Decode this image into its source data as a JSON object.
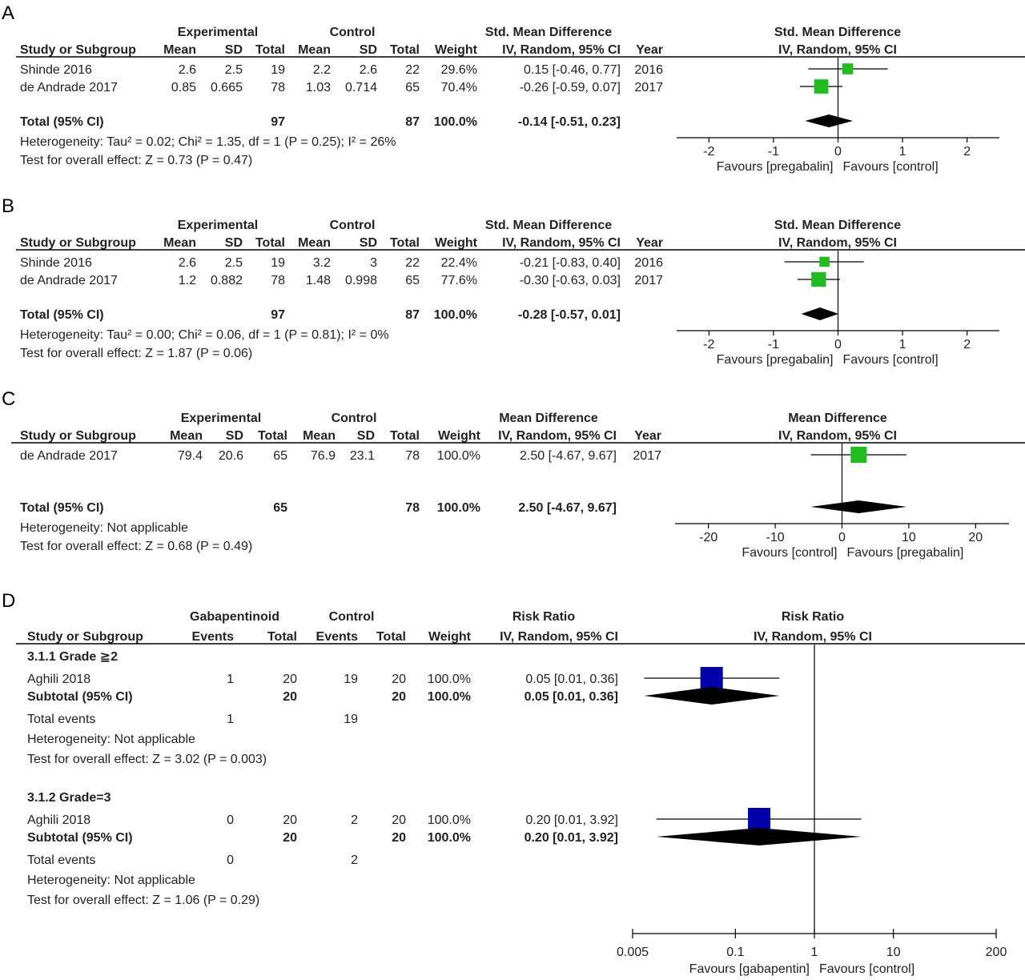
{
  "panels": [
    {
      "letter": "A",
      "group_headers": [
        "Experimental",
        "Control"
      ],
      "col_headers": [
        "Study or Subgroup",
        "Mean",
        "SD",
        "Total",
        "Mean",
        "SD",
        "Total",
        "Weight",
        "IV, Random, 95% CI",
        "Year"
      ],
      "effect_header": [
        "Std. Mean Difference",
        "IV, Random, 95% CI"
      ],
      "plot_header": [
        "Std. Mean Difference",
        "IV, Random, 95% CI"
      ],
      "rows": [
        {
          "study": "Shinde 2016",
          "cells": [
            "2.6",
            "2.5",
            "19",
            "2.2",
            "2.6",
            "22",
            "29.6%"
          ],
          "ci": "0.15 [-0.46, 0.77]",
          "year": "2016",
          "est": 0.15,
          "lo": -0.46,
          "hi": 0.77,
          "weight": 29.6
        },
        {
          "study": "de Andrade 2017",
          "cells": [
            "0.85",
            "0.665",
            "78",
            "1.03",
            "0.714",
            "65",
            "70.4%"
          ],
          "ci": "-0.26 [-0.59, 0.07]",
          "year": "2017",
          "est": -0.26,
          "lo": -0.59,
          "hi": 0.07,
          "weight": 70.4
        }
      ],
      "total": {
        "label": "Total (95% CI)",
        "exp_total": "97",
        "ctrl_total": "87",
        "weight": "100.0%",
        "ci": "-0.14 [-0.51, 0.23]",
        "est": -0.14,
        "lo": -0.51,
        "hi": 0.23
      },
      "notes": [
        "Heterogeneity: Tau² = 0.02; Chi² = 1.35, df = 1 (P = 0.25); I² = 26%",
        "Test for overall effect: Z = 0.73 (P = 0.47)"
      ],
      "axis": {
        "scale": "linear",
        "min": -2.5,
        "max": 2.5,
        "ref": 0,
        "ticks": [
          -2,
          -1,
          0,
          1,
          2
        ],
        "tick_labels": [
          "-2",
          "-1",
          "0",
          "1",
          "2"
        ],
        "favours_left": "Favours [pregabalin]",
        "favours_right": "Favours [control]"
      },
      "colors": {
        "square": "#22bb22"
      }
    },
    {
      "letter": "B",
      "group_headers": [
        "Experimental",
        "Control"
      ],
      "col_headers": [
        "Study or Subgroup",
        "Mean",
        "SD",
        "Total",
        "Mean",
        "SD",
        "Total",
        "Weight",
        "IV, Random, 95% CI",
        "Year"
      ],
      "effect_header": [
        "Std. Mean Difference",
        "IV, Random, 95% CI"
      ],
      "plot_header": [
        "Std. Mean Difference",
        "IV, Random, 95% CI"
      ],
      "rows": [
        {
          "study": "Shinde 2016",
          "cells": [
            "2.6",
            "2.5",
            "19",
            "3.2",
            "3",
            "22",
            "22.4%"
          ],
          "ci": "-0.21 [-0.83, 0.40]",
          "year": "2016",
          "est": -0.21,
          "lo": -0.83,
          "hi": 0.4,
          "weight": 22.4
        },
        {
          "study": "de Andrade 2017",
          "cells": [
            "1.2",
            "0.882",
            "78",
            "1.48",
            "0.998",
            "65",
            "77.6%"
          ],
          "ci": "-0.30 [-0.63, 0.03]",
          "year": "2017",
          "est": -0.3,
          "lo": -0.63,
          "hi": 0.03,
          "weight": 77.6
        }
      ],
      "total": {
        "label": "Total (95% CI)",
        "exp_total": "97",
        "ctrl_total": "87",
        "weight": "100.0%",
        "ci": "-0.28 [-0.57, 0.01]",
        "est": -0.28,
        "lo": -0.57,
        "hi": 0.01
      },
      "notes": [
        "Heterogeneity: Tau² = 0.00; Chi² = 0.06, df = 1 (P = 0.81); I² = 0%",
        "Test for overall effect: Z = 1.87 (P = 0.06)"
      ],
      "axis": {
        "scale": "linear",
        "min": -2.5,
        "max": 2.5,
        "ref": 0,
        "ticks": [
          -2,
          -1,
          0,
          1,
          2
        ],
        "tick_labels": [
          "-2",
          "-1",
          "0",
          "1",
          "2"
        ],
        "favours_left": "Favours [pregabalin]",
        "favours_right": "Favours [control]"
      },
      "colors": {
        "square": "#22bb22"
      }
    },
    {
      "letter": "C",
      "group_headers": [
        "Experimental",
        "Control"
      ],
      "col_headers": [
        "Study or Subgroup",
        "Mean",
        "SD",
        "Total",
        "Mean",
        "SD",
        "Total",
        "Weight",
        "IV, Random, 95% CI",
        "Year"
      ],
      "effect_header": [
        "Mean Difference",
        "IV, Random, 95% CI"
      ],
      "plot_header": [
        "Mean Difference",
        "IV, Random, 95% CI"
      ],
      "rows": [
        {
          "study": "de Andrade 2017",
          "cells": [
            "79.4",
            "20.6",
            "65",
            "76.9",
            "23.1",
            "78",
            "100.0%"
          ],
          "ci": "2.50 [-4.67, 9.67]",
          "year": "2017",
          "est": 2.5,
          "lo": -4.67,
          "hi": 9.67,
          "weight": 100.0
        }
      ],
      "total": {
        "label": "Total (95% CI)",
        "exp_total": "65",
        "ctrl_total": "78",
        "weight": "100.0%",
        "ci": "2.50 [-4.67, 9.67]",
        "est": 2.5,
        "lo": -4.67,
        "hi": 9.67
      },
      "notes": [
        "Heterogeneity: Not applicable",
        "Test for overall effect: Z = 0.68 (P = 0.49)"
      ],
      "axis": {
        "scale": "linear",
        "min": -25,
        "max": 25,
        "ref": 0,
        "ticks": [
          -20,
          -10,
          0,
          10,
          20
        ],
        "tick_labels": [
          "-20",
          "-10",
          "0",
          "10",
          "20"
        ],
        "favours_left": "Favours [control]",
        "favours_right": "Favours [pregabalin]"
      },
      "colors": {
        "square": "#22bb22"
      }
    }
  ],
  "panel_d": {
    "letter": "D",
    "group_headers": [
      "Gabapentinoid",
      "Control"
    ],
    "col_headers": [
      "Study or Subgroup",
      "Events",
      "Total",
      "Events",
      "Total",
      "Weight",
      "IV, Random, 95% CI"
    ],
    "effect_header": [
      "Risk Ratio",
      "IV, Random, 95% CI"
    ],
    "plot_header": [
      "Risk Ratio",
      "IV, Random, 95% CI"
    ],
    "subgroups": [
      {
        "title": "3.1.1 Grade ≧2",
        "study": {
          "name": "Aghili 2018",
          "events_exp": "1",
          "total_exp": "20",
          "events_ctrl": "19",
          "total_ctrl": "20",
          "weight": "100.0%",
          "ci": "0.05 [0.01, 0.36]",
          "est": 0.05,
          "lo": 0.007,
          "hi": 0.36
        },
        "subtotal": {
          "label": "Subtotal (95% CI)",
          "total_exp": "20",
          "total_ctrl": "20",
          "weight": "100.0%",
          "ci": "0.05 [0.01, 0.36]",
          "est": 0.05,
          "lo": 0.007,
          "hi": 0.36
        },
        "total_events": {
          "label": "Total events",
          "exp": "1",
          "ctrl": "19"
        },
        "notes": [
          "Heterogeneity: Not applicable",
          "Test for overall effect: Z = 3.02 (P = 0.003)"
        ]
      },
      {
        "title": "3.1.2 Grade=3",
        "study": {
          "name": "Aghili 2018",
          "events_exp": "0",
          "total_exp": "20",
          "events_ctrl": "2",
          "total_ctrl": "20",
          "weight": "100.0%",
          "ci": "0.20 [0.01, 3.92]",
          "est": 0.2,
          "lo": 0.01,
          "hi": 3.92
        },
        "subtotal": {
          "label": "Subtotal (95% CI)",
          "total_exp": "20",
          "total_ctrl": "20",
          "weight": "100.0%",
          "ci": "0.20 [0.01, 3.92]",
          "est": 0.2,
          "lo": 0.01,
          "hi": 3.92
        },
        "total_events": {
          "label": "Total events",
          "exp": "0",
          "ctrl": "2"
        },
        "notes": [
          "Heterogeneity: Not applicable",
          "Test for overall effect: Z = 1.06 (P = 0.29)"
        ]
      }
    ],
    "axis": {
      "scale": "log",
      "min": 0.005,
      "max": 200,
      "ref": 1,
      "ticks": [
        0.005,
        0.1,
        1,
        10,
        200
      ],
      "tick_labels": [
        "0.005",
        "0.1",
        "1",
        "10",
        "200"
      ],
      "favours_left": "Favours [gabapentin]",
      "favours_right": "Favours [control]"
    },
    "colors": {
      "square": "#0000aa"
    }
  },
  "chart_data": [
    {
      "type": "forest",
      "panel": "A",
      "measure": "Std. Mean Difference (IV, Random, 95% CI)",
      "studies": [
        {
          "name": "Shinde 2016",
          "est": 0.15,
          "lo": -0.46,
          "hi": 0.77,
          "weight": 29.6
        },
        {
          "name": "de Andrade 2017",
          "est": -0.26,
          "lo": -0.59,
          "hi": 0.07,
          "weight": 70.4
        }
      ],
      "pooled": {
        "est": -0.14,
        "lo": -0.51,
        "hi": 0.23
      },
      "xlim": [
        -2.5,
        2.5
      ]
    },
    {
      "type": "forest",
      "panel": "B",
      "measure": "Std. Mean Difference (IV, Random, 95% CI)",
      "studies": [
        {
          "name": "Shinde 2016",
          "est": -0.21,
          "lo": -0.83,
          "hi": 0.4,
          "weight": 22.4
        },
        {
          "name": "de Andrade 2017",
          "est": -0.3,
          "lo": -0.63,
          "hi": 0.03,
          "weight": 77.6
        }
      ],
      "pooled": {
        "est": -0.28,
        "lo": -0.57,
        "hi": 0.01
      },
      "xlim": [
        -2.5,
        2.5
      ]
    },
    {
      "type": "forest",
      "panel": "C",
      "measure": "Mean Difference (IV, Random, 95% CI)",
      "studies": [
        {
          "name": "de Andrade 2017",
          "est": 2.5,
          "lo": -4.67,
          "hi": 9.67,
          "weight": 100.0
        }
      ],
      "pooled": {
        "est": 2.5,
        "lo": -4.67,
        "hi": 9.67
      },
      "xlim": [
        -25,
        25
      ]
    },
    {
      "type": "forest",
      "panel": "D",
      "measure": "Risk Ratio (IV, Random, 95% CI)",
      "xscale": "log",
      "subgroups": [
        {
          "name": "3.1.1 Grade ≧2",
          "est": 0.05,
          "lo": 0.01,
          "hi": 0.36
        },
        {
          "name": "3.1.2 Grade=3",
          "est": 0.2,
          "lo": 0.01,
          "hi": 3.92
        }
      ],
      "xlim": [
        0.005,
        200
      ]
    }
  ]
}
